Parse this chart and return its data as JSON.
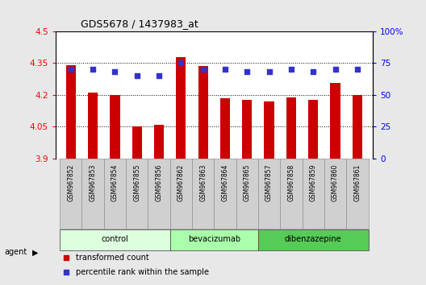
{
  "title": "GDS5678 / 1437983_at",
  "samples": [
    "GSM967852",
    "GSM967853",
    "GSM967854",
    "GSM967855",
    "GSM967856",
    "GSM967862",
    "GSM967863",
    "GSM967864",
    "GSM967865",
    "GSM967857",
    "GSM967858",
    "GSM967859",
    "GSM967860",
    "GSM967861"
  ],
  "transformed_counts": [
    4.34,
    4.21,
    4.2,
    4.05,
    4.06,
    4.38,
    4.335,
    4.185,
    4.175,
    4.17,
    4.19,
    4.175,
    4.255,
    4.2
  ],
  "percentile_ranks": [
    70,
    70,
    68,
    65,
    65,
    75,
    70,
    70,
    68,
    68,
    70,
    68,
    70,
    70
  ],
  "ylim_left": [
    3.9,
    4.5
  ],
  "ylim_right": [
    0,
    100
  ],
  "yticks_left": [
    3.9,
    4.05,
    4.2,
    4.35,
    4.5
  ],
  "ytick_labels_left": [
    "3.9",
    "4.05",
    "4.2",
    "4.35",
    "4.5"
  ],
  "yticks_right": [
    0,
    25,
    50,
    75,
    100
  ],
  "ytick_labels_right": [
    "0",
    "25",
    "50",
    "75",
    "100%"
  ],
  "bar_color": "#cc0000",
  "dot_color": "#3333cc",
  "groups": [
    {
      "label": "control",
      "start": 0,
      "end": 5,
      "color": "#ddffdd"
    },
    {
      "label": "bevacizumab",
      "start": 5,
      "end": 9,
      "color": "#aaffaa"
    },
    {
      "label": "dibenzazepine",
      "start": 9,
      "end": 14,
      "color": "#55cc55"
    }
  ],
  "agent_label": "agent",
  "legend_items": [
    {
      "color": "#cc0000",
      "label": "transformed count"
    },
    {
      "color": "#3333cc",
      "label": "percentile rank within the sample"
    }
  ],
  "background_color": "#e8e8e8",
  "plot_bg": "#ffffff",
  "ticklabel_bg": "#d0d0d0"
}
